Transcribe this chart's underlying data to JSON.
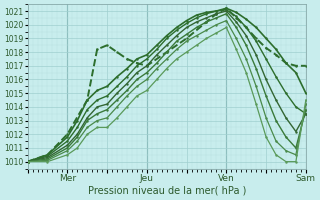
{
  "xlabel": "Pression niveau de la mer( hPa )",
  "bg_color": "#c8eded",
  "grid_major_color": "#a0d0d0",
  "grid_minor_color": "#b8e0e0",
  "ylim": [
    1009.5,
    1021.5
  ],
  "yticks": [
    1010,
    1011,
    1012,
    1013,
    1014,
    1015,
    1016,
    1017,
    1018,
    1019,
    1020,
    1021
  ],
  "xlim": [
    0,
    168
  ],
  "xtick_labels": [
    "",
    "Mer",
    "",
    "Jeu",
    "",
    "Ven",
    "",
    "Sam"
  ],
  "xtick_positions": [
    0,
    24,
    48,
    72,
    96,
    120,
    144,
    168
  ],
  "vlines_x": [
    24,
    72,
    120,
    168
  ],
  "vline_color": "#669999",
  "lines": [
    {
      "pts": [
        [
          0,
          1010.0
        ],
        [
          12,
          1010.5
        ],
        [
          24,
          1012.0
        ],
        [
          36,
          1014.5
        ],
        [
          42,
          1018.2
        ],
        [
          48,
          1018.5
        ],
        [
          54,
          1018.0
        ],
        [
          60,
          1017.5
        ],
        [
          66,
          1017.2
        ],
        [
          72,
          1017.0
        ],
        [
          84,
          1018.0
        ],
        [
          96,
          1019.0
        ],
        [
          108,
          1020.2
        ],
        [
          114,
          1020.8
        ],
        [
          120,
          1021.2
        ],
        [
          126,
          1020.5
        ],
        [
          132,
          1019.8
        ],
        [
          138,
          1019.0
        ],
        [
          144,
          1018.3
        ],
        [
          150,
          1017.8
        ],
        [
          156,
          1017.2
        ],
        [
          162,
          1017.0
        ],
        [
          168,
          1017.0
        ]
      ],
      "color": "#2d6e2d",
      "lw": 1.4,
      "ls": "--",
      "marker": "."
    },
    {
      "pts": [
        [
          0,
          1010.0
        ],
        [
          12,
          1010.5
        ],
        [
          24,
          1011.8
        ],
        [
          30,
          1013.0
        ],
        [
          36,
          1014.5
        ],
        [
          42,
          1015.2
        ],
        [
          48,
          1015.5
        ],
        [
          54,
          1016.2
        ],
        [
          60,
          1016.8
        ],
        [
          66,
          1017.5
        ],
        [
          72,
          1017.8
        ],
        [
          78,
          1018.5
        ],
        [
          84,
          1019.2
        ],
        [
          90,
          1019.8
        ],
        [
          96,
          1020.3
        ],
        [
          102,
          1020.7
        ],
        [
          108,
          1020.9
        ],
        [
          114,
          1021.0
        ],
        [
          120,
          1021.2
        ],
        [
          126,
          1020.9
        ],
        [
          132,
          1020.4
        ],
        [
          138,
          1019.8
        ],
        [
          144,
          1019.0
        ],
        [
          150,
          1018.2
        ],
        [
          156,
          1017.2
        ],
        [
          162,
          1016.5
        ],
        [
          168,
          1015.0
        ]
      ],
      "color": "#2d6e2d",
      "lw": 1.2,
      "ls": "-",
      "marker": "."
    },
    {
      "pts": [
        [
          0,
          1010.0
        ],
        [
          12,
          1010.4
        ],
        [
          24,
          1011.5
        ],
        [
          30,
          1012.5
        ],
        [
          36,
          1013.8
        ],
        [
          42,
          1014.5
        ],
        [
          48,
          1014.8
        ],
        [
          54,
          1015.5
        ],
        [
          60,
          1016.2
        ],
        [
          66,
          1017.0
        ],
        [
          72,
          1017.5
        ],
        [
          78,
          1018.2
        ],
        [
          84,
          1019.0
        ],
        [
          90,
          1019.6
        ],
        [
          96,
          1020.1
        ],
        [
          102,
          1020.5
        ],
        [
          108,
          1020.8
        ],
        [
          114,
          1021.0
        ],
        [
          120,
          1021.1
        ],
        [
          126,
          1020.6
        ],
        [
          132,
          1019.8
        ],
        [
          138,
          1018.8
        ],
        [
          144,
          1017.5
        ],
        [
          150,
          1016.2
        ],
        [
          156,
          1015.0
        ],
        [
          162,
          1014.0
        ],
        [
          168,
          1013.5
        ]
      ],
      "color": "#2d6e2d",
      "lw": 1.0,
      "ls": "-",
      "marker": "."
    },
    {
      "pts": [
        [
          0,
          1010.0
        ],
        [
          12,
          1010.3
        ],
        [
          24,
          1011.2
        ],
        [
          30,
          1012.0
        ],
        [
          36,
          1013.2
        ],
        [
          42,
          1014.0
        ],
        [
          48,
          1014.2
        ],
        [
          54,
          1015.0
        ],
        [
          60,
          1015.7
        ],
        [
          66,
          1016.5
        ],
        [
          72,
          1017.0
        ],
        [
          78,
          1017.8
        ],
        [
          84,
          1018.5
        ],
        [
          90,
          1019.2
        ],
        [
          96,
          1019.8
        ],
        [
          102,
          1020.2
        ],
        [
          108,
          1020.5
        ],
        [
          114,
          1020.8
        ],
        [
          120,
          1021.0
        ],
        [
          126,
          1020.2
        ],
        [
          132,
          1019.2
        ],
        [
          138,
          1017.8
        ],
        [
          144,
          1016.0
        ],
        [
          150,
          1014.5
        ],
        [
          156,
          1013.2
        ],
        [
          162,
          1012.2
        ],
        [
          168,
          1013.5
        ]
      ],
      "color": "#336633",
      "lw": 1.0,
      "ls": "-",
      "marker": "."
    },
    {
      "pts": [
        [
          0,
          1010.0
        ],
        [
          12,
          1010.2
        ],
        [
          24,
          1011.0
        ],
        [
          30,
          1011.8
        ],
        [
          36,
          1013.0
        ],
        [
          42,
          1013.5
        ],
        [
          48,
          1013.8
        ],
        [
          54,
          1014.5
        ],
        [
          60,
          1015.2
        ],
        [
          66,
          1016.0
        ],
        [
          72,
          1016.5
        ],
        [
          78,
          1017.2
        ],
        [
          84,
          1018.0
        ],
        [
          90,
          1018.8
        ],
        [
          96,
          1019.3
        ],
        [
          102,
          1019.8
        ],
        [
          108,
          1020.2
        ],
        [
          114,
          1020.5
        ],
        [
          120,
          1020.8
        ],
        [
          126,
          1019.8
        ],
        [
          132,
          1018.5
        ],
        [
          138,
          1016.8
        ],
        [
          144,
          1014.8
        ],
        [
          150,
          1013.0
        ],
        [
          156,
          1011.8
        ],
        [
          162,
          1011.0
        ],
        [
          168,
          1013.8
        ]
      ],
      "color": "#3a7a3a",
      "lw": 1.0,
      "ls": "-",
      "marker": "."
    },
    {
      "pts": [
        [
          0,
          1010.0
        ],
        [
          12,
          1010.1
        ],
        [
          24,
          1010.8
        ],
        [
          30,
          1011.5
        ],
        [
          36,
          1012.5
        ],
        [
          42,
          1013.0
        ],
        [
          48,
          1013.2
        ],
        [
          54,
          1014.0
        ],
        [
          60,
          1014.8
        ],
        [
          66,
          1015.5
        ],
        [
          72,
          1016.0
        ],
        [
          78,
          1016.8
        ],
        [
          84,
          1017.5
        ],
        [
          90,
          1018.2
        ],
        [
          96,
          1018.8
        ],
        [
          102,
          1019.2
        ],
        [
          108,
          1019.6
        ],
        [
          114,
          1020.0
        ],
        [
          120,
          1020.3
        ],
        [
          126,
          1019.0
        ],
        [
          132,
          1017.5
        ],
        [
          138,
          1015.5
        ],
        [
          144,
          1013.2
        ],
        [
          150,
          1011.5
        ],
        [
          156,
          1010.8
        ],
        [
          162,
          1010.5
        ],
        [
          168,
          1014.2
        ]
      ],
      "color": "#4a8a4a",
      "lw": 0.9,
      "ls": "-",
      "marker": "."
    },
    {
      "pts": [
        [
          0,
          1010.0
        ],
        [
          12,
          1010.0
        ],
        [
          24,
          1010.5
        ],
        [
          30,
          1011.0
        ],
        [
          36,
          1012.0
        ],
        [
          42,
          1012.5
        ],
        [
          48,
          1012.5
        ],
        [
          54,
          1013.2
        ],
        [
          60,
          1014.0
        ],
        [
          66,
          1014.8
        ],
        [
          72,
          1015.2
        ],
        [
          78,
          1016.0
        ],
        [
          84,
          1016.8
        ],
        [
          90,
          1017.5
        ],
        [
          96,
          1018.0
        ],
        [
          102,
          1018.5
        ],
        [
          108,
          1019.0
        ],
        [
          114,
          1019.4
        ],
        [
          120,
          1019.8
        ],
        [
          126,
          1018.2
        ],
        [
          132,
          1016.5
        ],
        [
          138,
          1014.2
        ],
        [
          144,
          1011.8
        ],
        [
          150,
          1010.5
        ],
        [
          156,
          1010.0
        ],
        [
          162,
          1010.0
        ],
        [
          168,
          1014.5
        ]
      ],
      "color": "#5a9a5a",
      "lw": 0.9,
      "ls": "-",
      "marker": "."
    }
  ]
}
